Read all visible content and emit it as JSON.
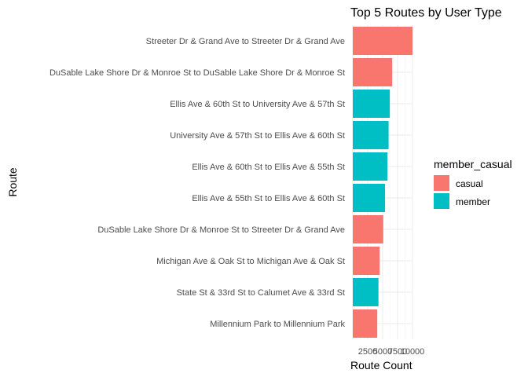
{
  "chart_data": {
    "type": "bar",
    "orientation": "horizontal",
    "title": "Top 5 Routes by User Type",
    "xlabel": "Route Count",
    "ylabel": "Route",
    "xlim": [
      0,
      10000
    ],
    "x_ticks": [
      2500,
      5000,
      7500,
      10000
    ],
    "x_tick_labels": [
      "2500",
      "5000",
      "7500",
      "10000"
    ],
    "grid": true,
    "legend": {
      "title": "member_casual",
      "position": "right",
      "entries": [
        {
          "name": "casual",
          "color": "#F8766D"
        },
        {
          "name": "member",
          "color": "#00BFC4"
        }
      ]
    },
    "categories": [
      "Streeter Dr & Grand Ave to Streeter Dr & Grand Ave",
      "DuSable Lake Shore Dr & Monroe St to DuSable Lake Shore Dr & Monroe St",
      "Ellis Ave & 60th St to University Ave & 57th St",
      "University Ave & 57th St to Ellis Ave & 60th St",
      "Ellis Ave & 60th St to Ellis Ave & 55th St",
      "Ellis Ave & 55th St to Ellis Ave & 60th St",
      "DuSable Lake Shore Dr & Monroe St to Streeter Dr & Grand Ave",
      "Michigan Ave & Oak St to Michigan Ave & Oak St",
      "State St & 33rd St to Calumet Ave & 33rd St",
      "Millennium Park to Millennium Park"
    ],
    "values": [
      10000,
      6600,
      6200,
      6000,
      5800,
      5400,
      5100,
      4500,
      4300,
      4100
    ],
    "groups": [
      "casual",
      "casual",
      "member",
      "member",
      "member",
      "member",
      "casual",
      "casual",
      "member",
      "casual"
    ]
  }
}
